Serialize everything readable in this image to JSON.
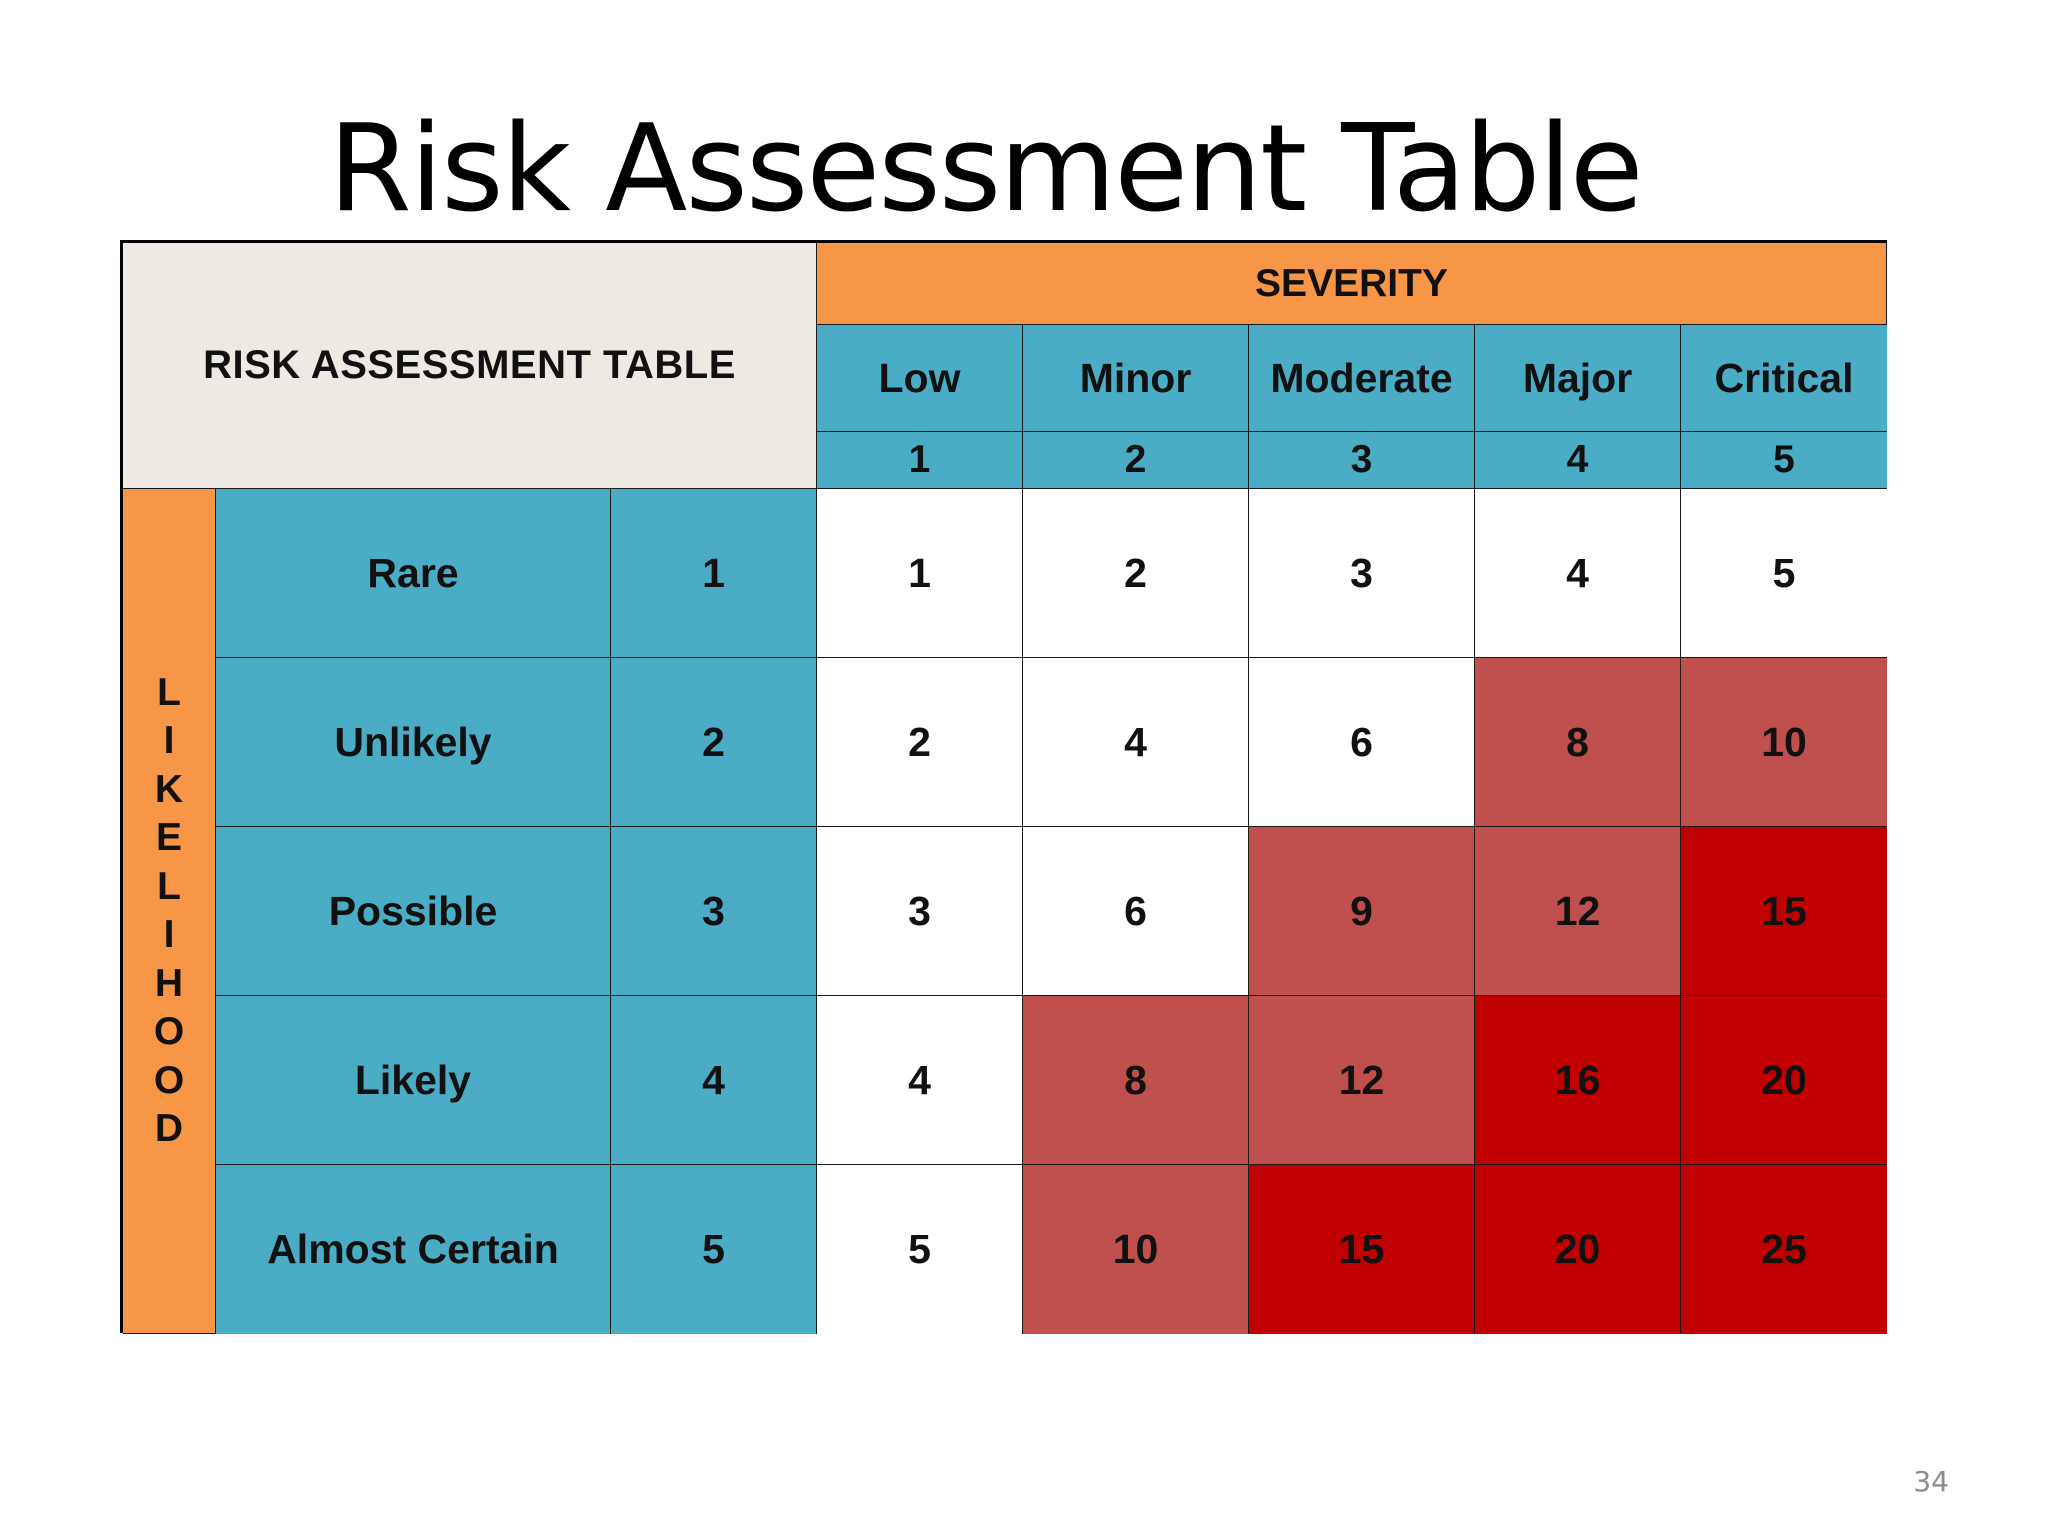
{
  "slide": {
    "title": "Risk Assessment Table",
    "page_number": "34"
  },
  "table": {
    "corner_label": "RISK ASSESSMENT TABLE",
    "severity_header": "SEVERITY",
    "likelihood_header": "LIKELIHOOD",
    "severity_levels": [
      {
        "label": "Low",
        "value": "1"
      },
      {
        "label": "Minor",
        "value": "2"
      },
      {
        "label": "Moderate",
        "value": "3"
      },
      {
        "label": "Major",
        "value": "4"
      },
      {
        "label": "Critical",
        "value": "5"
      }
    ],
    "likelihood_levels": [
      {
        "label": "Rare",
        "value": "1"
      },
      {
        "label": "Unlikely",
        "value": "2"
      },
      {
        "label": "Possible",
        "value": "3"
      },
      {
        "label": "Likely",
        "value": "4"
      },
      {
        "label": "Almost Certain",
        "value": "5"
      }
    ],
    "scores": [
      [
        "1",
        "2",
        "3",
        "4",
        "5"
      ],
      [
        "2",
        "4",
        "6",
        "8",
        "10"
      ],
      [
        "3",
        "6",
        "9",
        "12",
        "15"
      ],
      [
        "4",
        "8",
        "12",
        "16",
        "20"
      ],
      [
        "5",
        "10",
        "15",
        "20",
        "25"
      ]
    ],
    "score_levels": [
      [
        "low",
        "low",
        "low",
        "low",
        "low"
      ],
      [
        "low",
        "low",
        "low",
        "medium",
        "medium"
      ],
      [
        "low",
        "low",
        "medium",
        "medium",
        "high"
      ],
      [
        "low",
        "medium",
        "medium",
        "high",
        "high"
      ],
      [
        "low",
        "medium",
        "high",
        "high",
        "high"
      ]
    ],
    "colors": {
      "header_orange": "#f79646",
      "header_blue": "#4bacc6",
      "corner_beige": "#efe9e3",
      "low": "#ffffff",
      "medium": "#c0504d",
      "high": "#c00000"
    }
  }
}
